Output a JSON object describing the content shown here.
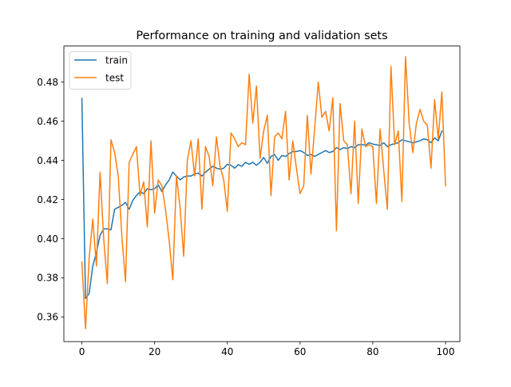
{
  "chart_data": {
    "type": "line",
    "title": "Performance on training and validation sets",
    "xlabel": "",
    "ylabel": "",
    "xlim": [
      -4.95,
      103.95
    ],
    "ylim": [
      0.3474,
      0.4984
    ],
    "xticks": [
      0,
      20,
      40,
      60,
      80,
      100
    ],
    "yticks": [
      0.36,
      0.38,
      0.4,
      0.42,
      0.44,
      0.46,
      0.48
    ],
    "ytick_labels": [
      "0.36",
      "0.38",
      "0.40",
      "0.42",
      "0.44",
      "0.46",
      "0.48"
    ],
    "grid": false,
    "legend_position": "upper-left",
    "series": [
      {
        "name": "train",
        "color": "#1f77b4",
        "values": [
          0.4716,
          0.3694,
          0.372,
          0.386,
          0.393,
          0.4017,
          0.405,
          0.405,
          0.4045,
          0.415,
          0.416,
          0.417,
          0.4185,
          0.415,
          0.4195,
          0.422,
          0.424,
          0.423,
          0.4255,
          0.425,
          0.4255,
          0.4275,
          0.424,
          0.4275,
          0.43,
          0.434,
          0.432,
          0.43,
          0.4315,
          0.432,
          0.432,
          0.433,
          0.4335,
          0.432,
          0.434,
          0.4355,
          0.437,
          0.436,
          0.4355,
          0.436,
          0.438,
          0.4375,
          0.436,
          0.4378,
          0.437,
          0.439,
          0.438,
          0.439,
          0.4375,
          0.439,
          0.4415,
          0.4385,
          0.442,
          0.443,
          0.44,
          0.4425,
          0.442,
          0.4435,
          0.4445,
          0.4445,
          0.445,
          0.444,
          0.4425,
          0.443,
          0.442,
          0.443,
          0.444,
          0.445,
          0.444,
          0.4445,
          0.4465,
          0.4455,
          0.4465,
          0.446,
          0.447,
          0.4465,
          0.448,
          0.448,
          0.4478,
          0.449,
          0.4483,
          0.448,
          0.4475,
          0.449,
          0.447,
          0.448,
          0.4485,
          0.449,
          0.4505,
          0.45,
          0.4495,
          0.449,
          0.4495,
          0.45,
          0.451,
          0.4505,
          0.449,
          0.4515,
          0.45,
          0.455
        ]
      },
      {
        "name": "test",
        "color": "#ff7f0e",
        "values": [
          0.388,
          0.354,
          0.39,
          0.41,
          0.386,
          0.434,
          0.4,
          0.377,
          0.4505,
          0.444,
          0.432,
          0.401,
          0.378,
          0.439,
          0.443,
          0.447,
          0.422,
          0.429,
          0.406,
          0.45,
          0.413,
          0.43,
          0.427,
          0.415,
          0.399,
          0.379,
          0.432,
          0.416,
          0.391,
          0.44,
          0.45,
          0.432,
          0.451,
          0.415,
          0.447,
          0.442,
          0.427,
          0.452,
          0.437,
          0.43,
          0.414,
          0.454,
          0.451,
          0.447,
          0.449,
          0.448,
          0.484,
          0.459,
          0.478,
          0.441,
          0.455,
          0.463,
          0.422,
          0.452,
          0.454,
          0.451,
          0.465,
          0.43,
          0.45,
          0.436,
          0.423,
          0.427,
          0.463,
          0.433,
          0.456,
          0.48,
          0.462,
          0.465,
          0.455,
          0.472,
          0.404,
          0.469,
          0.45,
          0.448,
          0.423,
          0.46,
          0.418,
          0.456,
          0.447,
          0.448,
          0.447,
          0.418,
          0.456,
          0.435,
          0.415,
          0.488,
          0.448,
          0.455,
          0.419,
          0.493,
          0.459,
          0.444,
          0.459,
          0.466,
          0.46,
          0.458,
          0.436,
          0.471,
          0.451,
          0.475,
          0.427
        ]
      }
    ]
  }
}
